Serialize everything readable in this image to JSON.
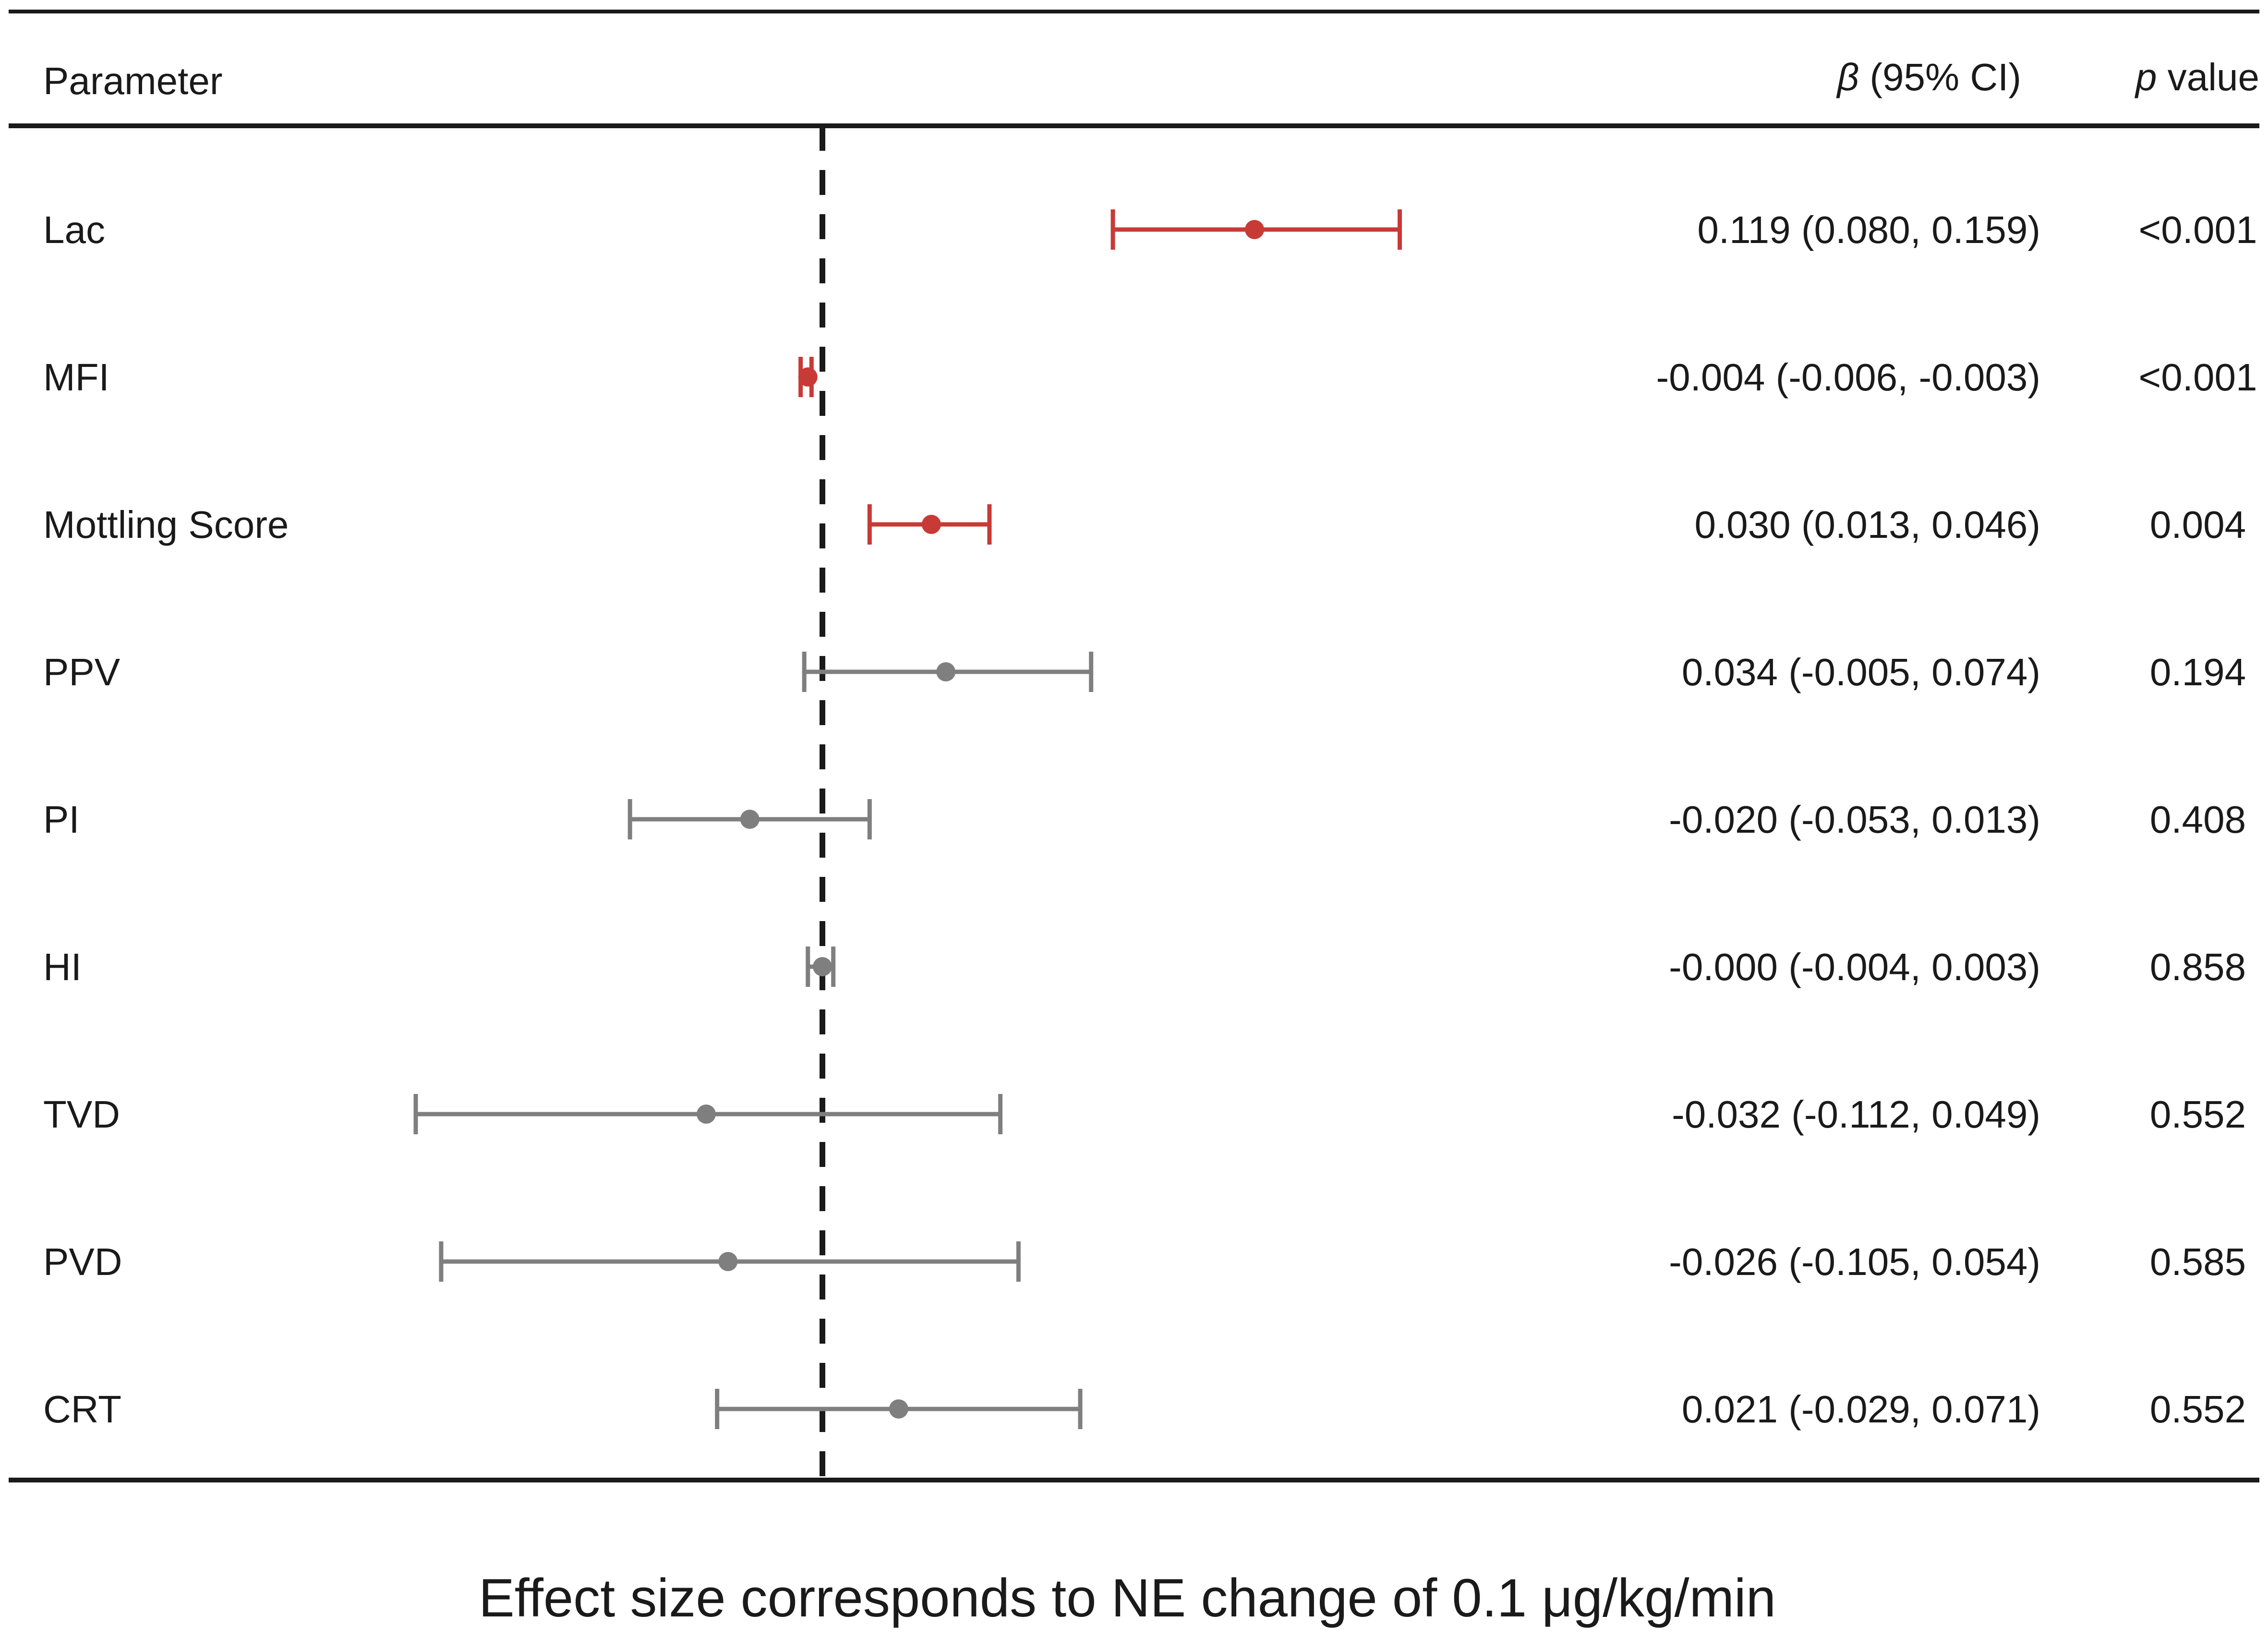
{
  "chart_data": {
    "type": "forest",
    "headers": {
      "parameter": "Parameter",
      "beta_symbol": "β",
      "beta_rest": " (95% CI)",
      "p_symbol": "p",
      "p_rest": " value"
    },
    "xlabel": "Effect size corresponds to NE change of 0.1 μg/kg/min",
    "reference_line": 0,
    "colors": {
      "significant": "#c83a36",
      "not_significant": "#7f7f7f",
      "reference_line": "#1a1a1a"
    },
    "rows": [
      {
        "parameter": "Lac",
        "beta": 0.119,
        "lower": 0.08,
        "upper": 0.159,
        "ci_text": "0.119 (0.080, 0.159)",
        "p_text": "<0.001",
        "significant": true
      },
      {
        "parameter": "MFI",
        "beta": -0.004,
        "lower": -0.006,
        "upper": -0.003,
        "ci_text": "-0.004 (-0.006, -0.003)",
        "p_text": "<0.001",
        "significant": true
      },
      {
        "parameter": "Mottling Score",
        "beta": 0.03,
        "lower": 0.013,
        "upper": 0.046,
        "ci_text": "0.030 (0.013, 0.046)",
        "p_text": "0.004",
        "significant": true
      },
      {
        "parameter": "PPV",
        "beta": 0.034,
        "lower": -0.005,
        "upper": 0.074,
        "ci_text": "0.034 (-0.005, 0.074)",
        "p_text": "0.194",
        "significant": false
      },
      {
        "parameter": "PI",
        "beta": -0.02,
        "lower": -0.053,
        "upper": 0.013,
        "ci_text": "-0.020 (-0.053, 0.013)",
        "p_text": "0.408",
        "significant": false
      },
      {
        "parameter": "HI",
        "beta": -0.0,
        "lower": -0.004,
        "upper": 0.003,
        "ci_text": "-0.000 (-0.004, 0.003)",
        "p_text": "0.858",
        "significant": false
      },
      {
        "parameter": "TVD",
        "beta": -0.032,
        "lower": -0.112,
        "upper": 0.049,
        "ci_text": "-0.032 (-0.112, 0.049)",
        "p_text": "0.552",
        "significant": false
      },
      {
        "parameter": "PVD",
        "beta": -0.026,
        "lower": -0.105,
        "upper": 0.054,
        "ci_text": "-0.026 (-0.105, 0.054)",
        "p_text": "0.585",
        "significant": false
      },
      {
        "parameter": "CRT",
        "beta": 0.021,
        "lower": -0.029,
        "upper": 0.071,
        "ci_text": "0.021 (-0.029, 0.071)",
        "p_text": "0.552",
        "significant": false
      }
    ]
  }
}
